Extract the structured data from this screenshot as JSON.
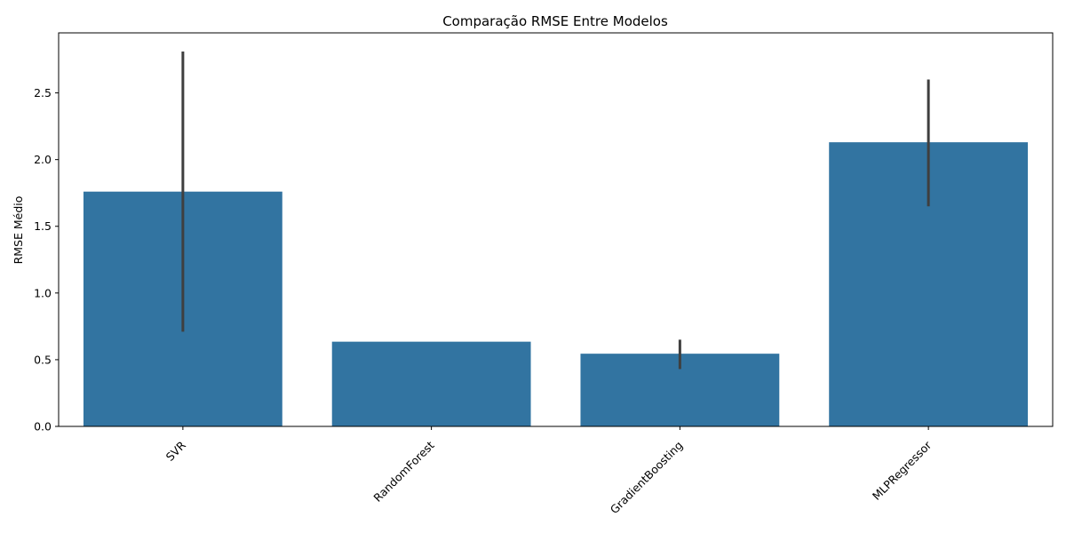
{
  "chart_data": {
    "type": "bar",
    "title": "Comparação RMSE Entre Modelos",
    "xlabel": "",
    "ylabel": "RMSE Médio",
    "categories": [
      "SVR",
      "RandomForest",
      "GradientBoosting",
      "MLPRegressor"
    ],
    "values": [
      1.76,
      0.635,
      0.545,
      2.13
    ],
    "error_bars": [
      {
        "low": 0.71,
        "high": 2.81
      },
      null,
      {
        "low": 0.43,
        "high": 0.65
      },
      {
        "low": 1.65,
        "high": 2.6
      }
    ],
    "ylim": [
      0,
      2.95
    ],
    "yticks": [
      0.0,
      0.5,
      1.0,
      1.5,
      2.0,
      2.5
    ],
    "ytick_labels": [
      "0.0",
      "0.5",
      "1.0",
      "1.5",
      "2.0",
      "2.5"
    ],
    "grid": false,
    "legend": "none",
    "bar_color": "#3274a1",
    "errorbar_color": "#3f3f3f",
    "xtick_rotation_deg": 45
  }
}
